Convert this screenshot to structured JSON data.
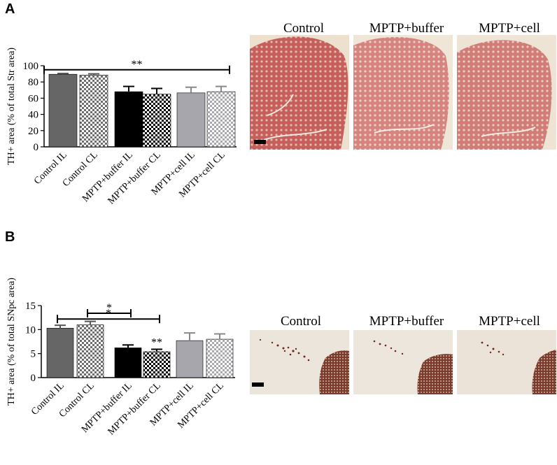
{
  "panels": {
    "a": {
      "letter": "A"
    },
    "b": {
      "letter": "B"
    }
  },
  "chart_data": [
    {
      "type": "bar",
      "panel": "A",
      "ylabel": "TH+ area (% of total Str area)",
      "ylim": [
        0,
        100
      ],
      "yticks": [
        0,
        20,
        40,
        60,
        80,
        100
      ],
      "categories": [
        "Control IL",
        "Control CL",
        "MPTP+buffer IL",
        "MPTP+buffer CL",
        "MPTP+cell IL",
        "MPTP+cell CL"
      ],
      "values": [
        89.5,
        88.5,
        68,
        65,
        66.5,
        68
      ],
      "errors": [
        1,
        1.5,
        6.5,
        7,
        7,
        6.5
      ],
      "fills": [
        "#666666",
        "checker-grey",
        "#000000",
        "checker-black",
        "#a6a6ac",
        "checker-light"
      ],
      "annotations": [
        {
          "text": "**",
          "from": 0,
          "to": 5,
          "y": 95
        }
      ]
    },
    {
      "type": "bar",
      "panel": "B",
      "ylabel": "TH+ area (% of total SNpc area)",
      "ylim": [
        0,
        15
      ],
      "yticks": [
        0,
        5,
        10,
        15
      ],
      "categories": [
        "Control IL",
        "Control CL",
        "MPTP+buffer IL",
        "MPTP+buffer CL",
        "MPTP+cell IL",
        "MPTP+cell CL"
      ],
      "values": [
        10.3,
        11.0,
        6.2,
        5.4,
        7.7,
        8.0
      ],
      "errors": [
        0.6,
        0.7,
        0.6,
        0.5,
        1.6,
        1.1
      ],
      "fills": [
        "#666666",
        "checker-grey",
        "#000000",
        "checker-black",
        "#a6a6ac",
        "checker-light"
      ],
      "annotations": [
        {
          "text": "*",
          "from": 1,
          "to": 2,
          "y": 13.4
        },
        {
          "text": "*",
          "from": 0,
          "to": 3,
          "y": 12.2
        },
        {
          "text": "**",
          "bar": 3,
          "y": 6.6
        }
      ]
    }
  ],
  "micrographs": {
    "a": [
      {
        "title": "Control",
        "color": "#c96f6c"
      },
      {
        "title": "MPTP+buffer",
        "color": "#d88f88"
      },
      {
        "title": "MPTP+cell",
        "color": "#d48a84"
      }
    ],
    "b": [
      {
        "title": "Control",
        "color": "#e9e2d8"
      },
      {
        "title": "MPTP+buffer",
        "color": "#ebe4da"
      },
      {
        "title": "MPTP+cell",
        "color": "#e8e1d6"
      }
    ]
  },
  "colors": {
    "dark_grey": "#666666",
    "black": "#000000",
    "light_grey": "#a6a6ac",
    "tissue_red": "#b84a4a",
    "tissue_brown": "#5a2418"
  }
}
